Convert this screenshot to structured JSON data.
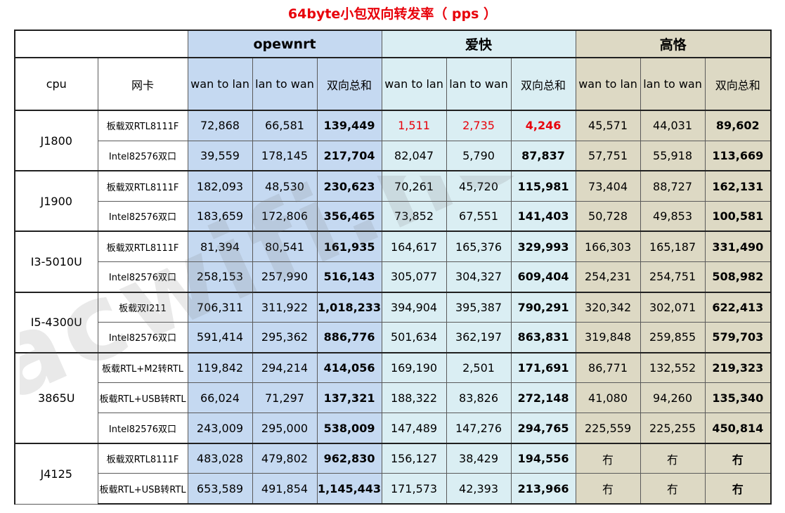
{
  "title": "64byte小包双向转发率（ pps ）",
  "watermark": "acwifi.net",
  "colors": {
    "title_red": "#e8000a",
    "openwrt_bg": "#c5d9f1",
    "ikuai_bg": "#daeef3",
    "gaoge_bg": "#ddd9c4",
    "highlight_red": "#e8000a"
  },
  "headers": {
    "groups": [
      "opewnrt",
      "爱快",
      "高恪"
    ],
    "cpu": "cpu",
    "nic": "网卡",
    "sub": [
      "wan to lan",
      "lan to wan",
      "双向总和"
    ]
  },
  "rows": [
    {
      "cpu": "J1800",
      "nic": "板载双RTL8111F",
      "values": [
        "72,868",
        "66,581",
        "139,449",
        "1,511",
        "2,735",
        "4,246",
        "45,571",
        "44,031",
        "89,602"
      ]
    },
    {
      "cpu": "",
      "nic": "Intel82576双口",
      "values": [
        "39,559",
        "178,145",
        "217,704",
        "82,047",
        "5,790",
        "87,837",
        "57,751",
        "55,918",
        "113,669"
      ]
    },
    {
      "cpu": "J1900",
      "nic": "板载双RTL8111F",
      "values": [
        "182,093",
        "48,530",
        "230,623",
        "70,261",
        "45,720",
        "115,981",
        "73,404",
        "88,727",
        "162,131"
      ]
    },
    {
      "cpu": "",
      "nic": "Intel82576双口",
      "values": [
        "183,659",
        "172,806",
        "356,465",
        "73,852",
        "67,551",
        "141,403",
        "50,728",
        "49,853",
        "100,581"
      ]
    },
    {
      "cpu": "I3-5010U",
      "nic": "板载双RTL8111F",
      "values": [
        "81,394",
        "80,541",
        "161,935",
        "164,617",
        "165,376",
        "329,993",
        "166,303",
        "165,187",
        "331,490"
      ]
    },
    {
      "cpu": "",
      "nic": "Intel82576双口",
      "values": [
        "258,153",
        "257,990",
        "516,143",
        "305,077",
        "304,327",
        "609,404",
        "254,231",
        "254,751",
        "508,982"
      ]
    },
    {
      "cpu": "I5-4300U",
      "nic": "板载双I211",
      "values": [
        "706,311",
        "311,922",
        "1,018,233",
        "394,904",
        "395,387",
        "790,291",
        "320,342",
        "302,071",
        "622,413"
      ]
    },
    {
      "cpu": "",
      "nic": "Intel82576双口",
      "values": [
        "591,414",
        "295,362",
        "886,776",
        "501,634",
        "362,197",
        "863,831",
        "319,848",
        "259,855",
        "579,703"
      ]
    },
    {
      "cpu": "3865U",
      "nic": "板载RTL+M2转RTL",
      "values": [
        "119,842",
        "294,214",
        "414,056",
        "169,190",
        "2,501",
        "171,691",
        "86,771",
        "132,552",
        "219,323"
      ]
    },
    {
      "cpu": "",
      "nic": "板载RTL+USB转RTL",
      "values": [
        "66,024",
        "71,297",
        "137,321",
        "188,322",
        "83,826",
        "272,148",
        "41,080",
        "94,260",
        "135,340"
      ]
    },
    {
      "cpu": "",
      "nic": "Intel82576双口",
      "values": [
        "243,009",
        "295,000",
        "538,009",
        "147,489",
        "147,276",
        "294,765",
        "225,559",
        "225,255",
        "450,814"
      ]
    },
    {
      "cpu": "J4125",
      "nic": "板载双RTL8111F",
      "values": [
        "483,028",
        "479,802",
        "962,830",
        "156,127",
        "38,429",
        "194,556",
        "冇",
        "冇",
        "冇"
      ]
    },
    {
      "cpu": "",
      "nic": "板载RTL+USB转RTL",
      "values": [
        "653,589",
        "491,854",
        "1,145,443",
        "171,573",
        "42,393",
        "213,966",
        "冇",
        "冇",
        "冇"
      ]
    }
  ]
}
